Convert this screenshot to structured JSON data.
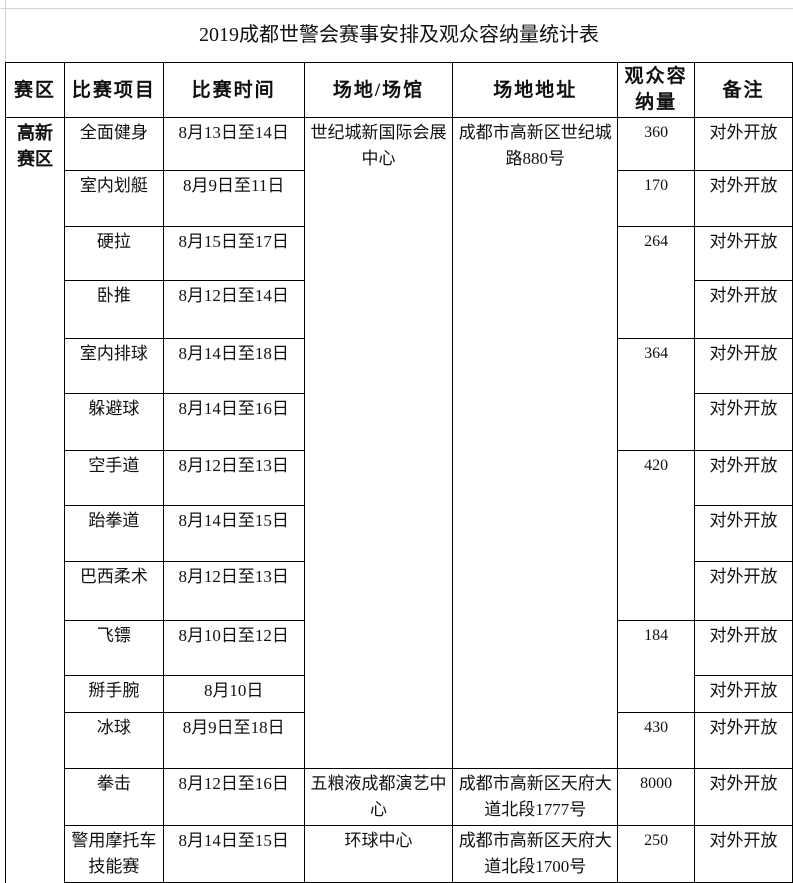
{
  "title": "2019成都世警会赛事安排及观众容纳量统计表",
  "headers": [
    "赛区",
    "比赛项目",
    "比赛时间",
    "场地/场馆",
    "场地地址",
    "观众容纳量",
    "备注"
  ],
  "zone": "高新赛区",
  "events": [
    {
      "name": "全面健身",
      "time": "8月13日至14日",
      "note": "对外开放"
    },
    {
      "name": "室内划艇",
      "time": "8月9日至11日",
      "note": "对外开放"
    },
    {
      "name": "硬拉",
      "time": "8月15日至17日",
      "note": "对外开放"
    },
    {
      "name": "卧推",
      "time": "8月12日至14日",
      "note": "对外开放"
    },
    {
      "name": "室内排球",
      "time": "8月14日至18日",
      "note": "对外开放"
    },
    {
      "name": "躲避球",
      "time": "8月14日至16日",
      "note": "对外开放"
    },
    {
      "name": "空手道",
      "time": "8月12日至13日",
      "note": "对外开放"
    },
    {
      "name": "跆拳道",
      "time": "8月14日至15日",
      "note": "对外开放"
    },
    {
      "name": "巴西柔术",
      "time": "8月12日至13日",
      "note": "对外开放"
    },
    {
      "name": "飞镖",
      "time": "8月10日至12日",
      "note": "对外开放"
    },
    {
      "name": "掰手腕",
      "time": "8月10日",
      "note": "对外开放"
    },
    {
      "name": "冰球",
      "time": "8月9日至18日",
      "note": "对外开放"
    },
    {
      "name": "拳击",
      "time": "8月12日至16日",
      "note": "对外开放"
    },
    {
      "name": "警用摩托车技能赛",
      "time": "8月14日至15日",
      "note": "对外开放"
    }
  ],
  "venues": [
    {
      "name": "世纪城新国际会展中心",
      "address": "成都市高新区世纪城路880号"
    },
    {
      "name": "五粮液成都演艺中心",
      "address": "成都市高新区天府大道北段1777号"
    },
    {
      "name": "环球中心",
      "address": "成都市高新区天府大道北段1700号"
    }
  ],
  "capacities": [
    "360",
    "170",
    "264",
    "364",
    "420",
    "184",
    "430",
    "8000",
    "250"
  ]
}
